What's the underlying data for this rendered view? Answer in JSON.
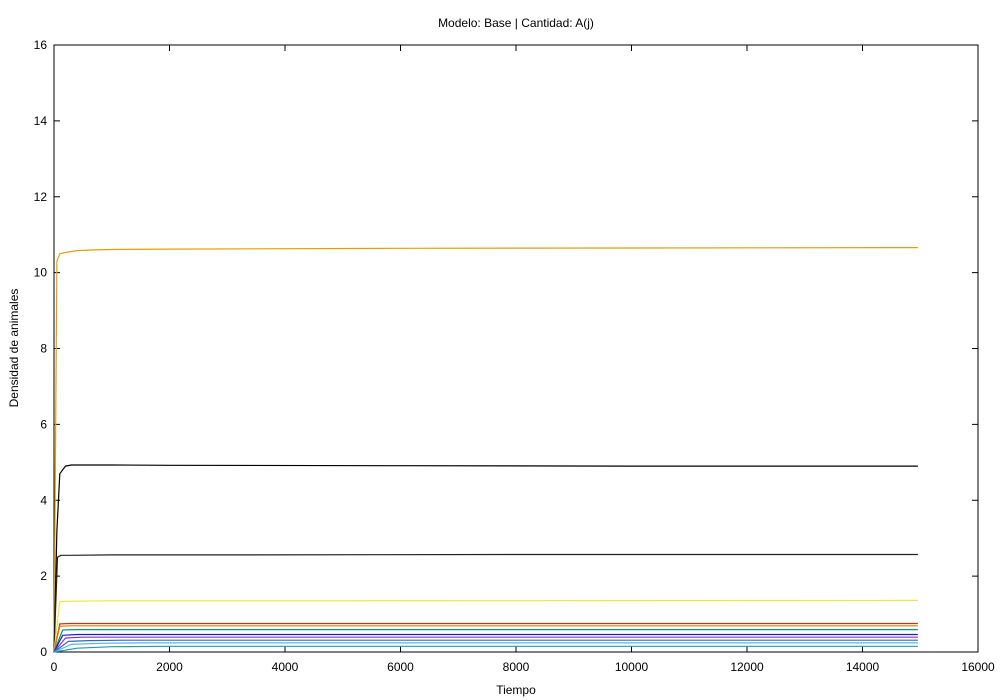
{
  "chart_data": {
    "type": "line",
    "title": "Modelo: Base | Cantidad: A(j)",
    "xlabel": "Tiempo",
    "ylabel": "Densidad de animales",
    "xlim": [
      0,
      16000
    ],
    "ylim": [
      0,
      16
    ],
    "x_ticks": [
      0,
      2000,
      4000,
      6000,
      8000,
      10000,
      12000,
      14000,
      16000
    ],
    "y_ticks": [
      0,
      2,
      4,
      6,
      8,
      10,
      12,
      14,
      16
    ],
    "grid": false,
    "legend": "none",
    "series": [
      {
        "color": "#e69f00",
        "x": [
          0,
          50,
          100,
          200,
          400,
          700,
          1000,
          2000,
          6000,
          10000,
          14960
        ],
        "y": [
          0,
          10.3,
          10.5,
          10.53,
          10.58,
          10.6,
          10.61,
          10.62,
          10.64,
          10.65,
          10.66
        ]
      },
      {
        "color": "#000000",
        "x": [
          0,
          50,
          100,
          200,
          300,
          500,
          1000,
          2000,
          6000,
          10000,
          14960
        ],
        "y": [
          0,
          3.2,
          4.7,
          4.9,
          4.93,
          4.93,
          4.93,
          4.92,
          4.91,
          4.9,
          4.9
        ]
      },
      {
        "color": "#222222",
        "x": [
          0,
          60,
          120,
          300,
          1000,
          3000,
          8000,
          14960
        ],
        "y": [
          0,
          2.5,
          2.55,
          2.55,
          2.56,
          2.56,
          2.57,
          2.57
        ]
      },
      {
        "color": "#f0e442",
        "x": [
          0,
          100,
          300,
          1000,
          5000,
          14960
        ],
        "y": [
          0,
          1.33,
          1.34,
          1.35,
          1.35,
          1.36
        ]
      },
      {
        "color": "#cc3311",
        "x": [
          0,
          100,
          300,
          1000,
          5000,
          14960
        ],
        "y": [
          0,
          0.74,
          0.75,
          0.75,
          0.75,
          0.75
        ]
      },
      {
        "color": "#e07b00",
        "x": [
          0,
          100,
          300,
          1000,
          5000,
          14960
        ],
        "y": [
          0,
          0.68,
          0.69,
          0.69,
          0.69,
          0.69
        ]
      },
      {
        "color": "#009e73",
        "x": [
          0,
          150,
          400,
          1000,
          5000,
          14960
        ],
        "y": [
          0,
          0.58,
          0.59,
          0.59,
          0.59,
          0.59
        ]
      },
      {
        "color": "#1f1fb4",
        "x": [
          0,
          150,
          400,
          1000,
          5000,
          14960
        ],
        "y": [
          0,
          0.44,
          0.46,
          0.46,
          0.46,
          0.46
        ]
      },
      {
        "color": "#8a2be2",
        "x": [
          0,
          200,
          500,
          1000,
          5000,
          14960
        ],
        "y": [
          0,
          0.37,
          0.39,
          0.39,
          0.39,
          0.39
        ]
      },
      {
        "color": "#3366cc",
        "x": [
          0,
          250,
          600,
          1200,
          5000,
          14960
        ],
        "y": [
          0,
          0.28,
          0.3,
          0.31,
          0.31,
          0.31
        ]
      },
      {
        "color": "#56b4e9",
        "x": [
          0,
          300,
          800,
          1500,
          5000,
          14960
        ],
        "y": [
          0,
          0.2,
          0.23,
          0.24,
          0.24,
          0.24
        ]
      },
      {
        "color": "#20a0a0",
        "x": [
          0,
          400,
          1000,
          2000,
          5000,
          14960
        ],
        "y": [
          0,
          0.1,
          0.14,
          0.15,
          0.15,
          0.15
        ]
      }
    ]
  }
}
